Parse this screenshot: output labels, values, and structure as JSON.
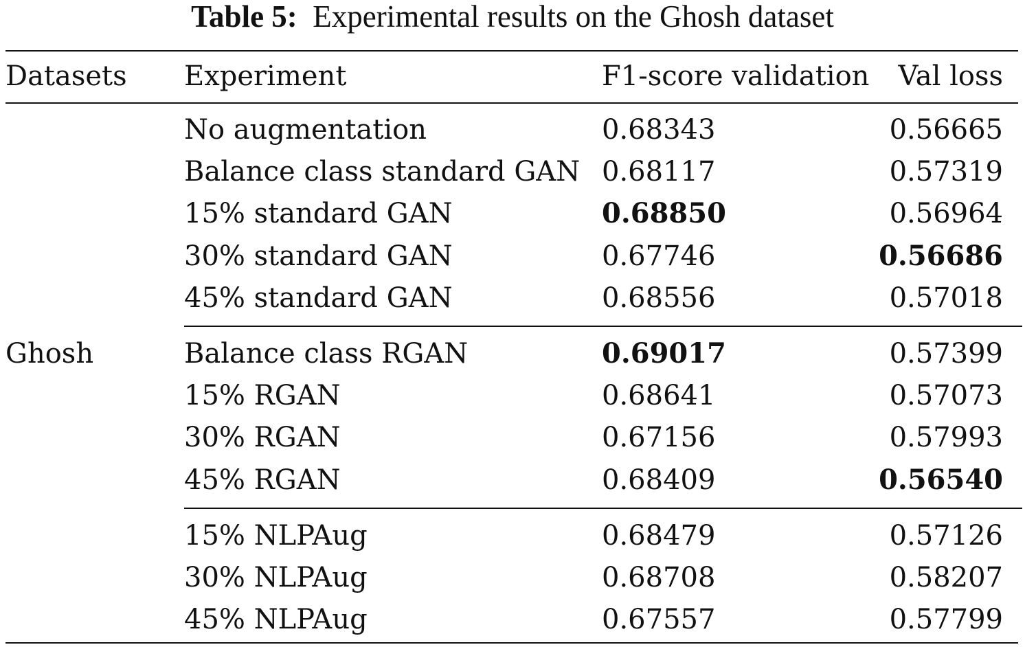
{
  "caption": {
    "label": "Table 5:",
    "text": "Experimental results on the Ghosh dataset"
  },
  "table": {
    "headers": [
      "Datasets",
      "Experiment",
      "F1-score validation",
      "Val loss"
    ],
    "dataset_name": "Ghosh",
    "groups": [
      {
        "name": "standard-gan",
        "rows": [
          {
            "experiment": "No augmentation",
            "f1": "0.68343",
            "val_loss": "0.56665",
            "f1_bold": false,
            "loss_bold": false
          },
          {
            "experiment": "Balance class standard GAN",
            "f1": "0.68117",
            "val_loss": "0.57319",
            "f1_bold": false,
            "loss_bold": false
          },
          {
            "experiment": "15% standard GAN",
            "f1": "0.68850",
            "val_loss": "0.56964",
            "f1_bold": true,
            "loss_bold": false
          },
          {
            "experiment": "30% standard GAN",
            "f1": "0.67746",
            "val_loss": "0.56686",
            "f1_bold": false,
            "loss_bold": true
          },
          {
            "experiment": "45% standard GAN",
            "f1": "0.68556",
            "val_loss": "0.57018",
            "f1_bold": false,
            "loss_bold": false
          }
        ]
      },
      {
        "name": "rgan",
        "rows": [
          {
            "experiment": "Balance class RGAN",
            "f1": "0.69017",
            "val_loss": "0.57399",
            "f1_bold": true,
            "loss_bold": false
          },
          {
            "experiment": "15% RGAN",
            "f1": "0.68641",
            "val_loss": "0.57073",
            "f1_bold": false,
            "loss_bold": false
          },
          {
            "experiment": "30% RGAN",
            "f1": "0.67156",
            "val_loss": "0.57993",
            "f1_bold": false,
            "loss_bold": false
          },
          {
            "experiment": "45% RGAN",
            "f1": "0.68409",
            "val_loss": "0.56540",
            "f1_bold": false,
            "loss_bold": true
          }
        ]
      },
      {
        "name": "nlpaug",
        "rows": [
          {
            "experiment": "15% NLPAug",
            "f1": "0.68479",
            "val_loss": "0.57126",
            "f1_bold": false,
            "loss_bold": false
          },
          {
            "experiment": "30% NLPAug",
            "f1": "0.68708",
            "val_loss": "0.58207",
            "f1_bold": false,
            "loss_bold": false
          },
          {
            "experiment": "45% NLPAug",
            "f1": "0.67557",
            "val_loss": "0.57799",
            "f1_bold": false,
            "loss_bold": false
          }
        ]
      }
    ]
  }
}
